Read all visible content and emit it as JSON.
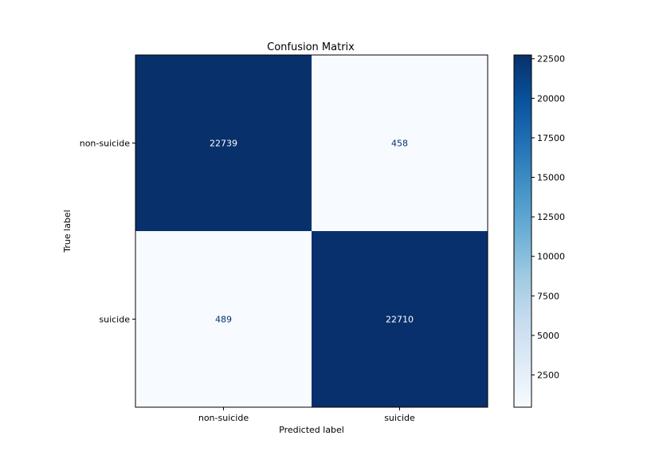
{
  "chart_data": {
    "type": "heatmap",
    "title": "Confusion Matrix",
    "xlabel": "Predicted label",
    "ylabel": "True label",
    "x_categories": [
      "non-suicide",
      "suicide"
    ],
    "y_categories": [
      "non-suicide",
      "suicide"
    ],
    "matrix": [
      [
        22739,
        458
      ],
      [
        489,
        22710
      ]
    ],
    "colormap": "Blues",
    "color_low": "#f7fbff",
    "color_high": "#08306b",
    "text_color_dark_cell": "#ffffff",
    "text_color_light_cell": "#08306b",
    "colorbar": {
      "range": [
        458,
        22739
      ],
      "ticks": [
        2500,
        5000,
        7500,
        10000,
        12500,
        15000,
        17500,
        20000,
        22500
      ],
      "tick_labels": [
        "2500",
        "5000",
        "7500",
        "10000",
        "12500",
        "15000",
        "17500",
        "20000",
        "22500"
      ]
    }
  }
}
